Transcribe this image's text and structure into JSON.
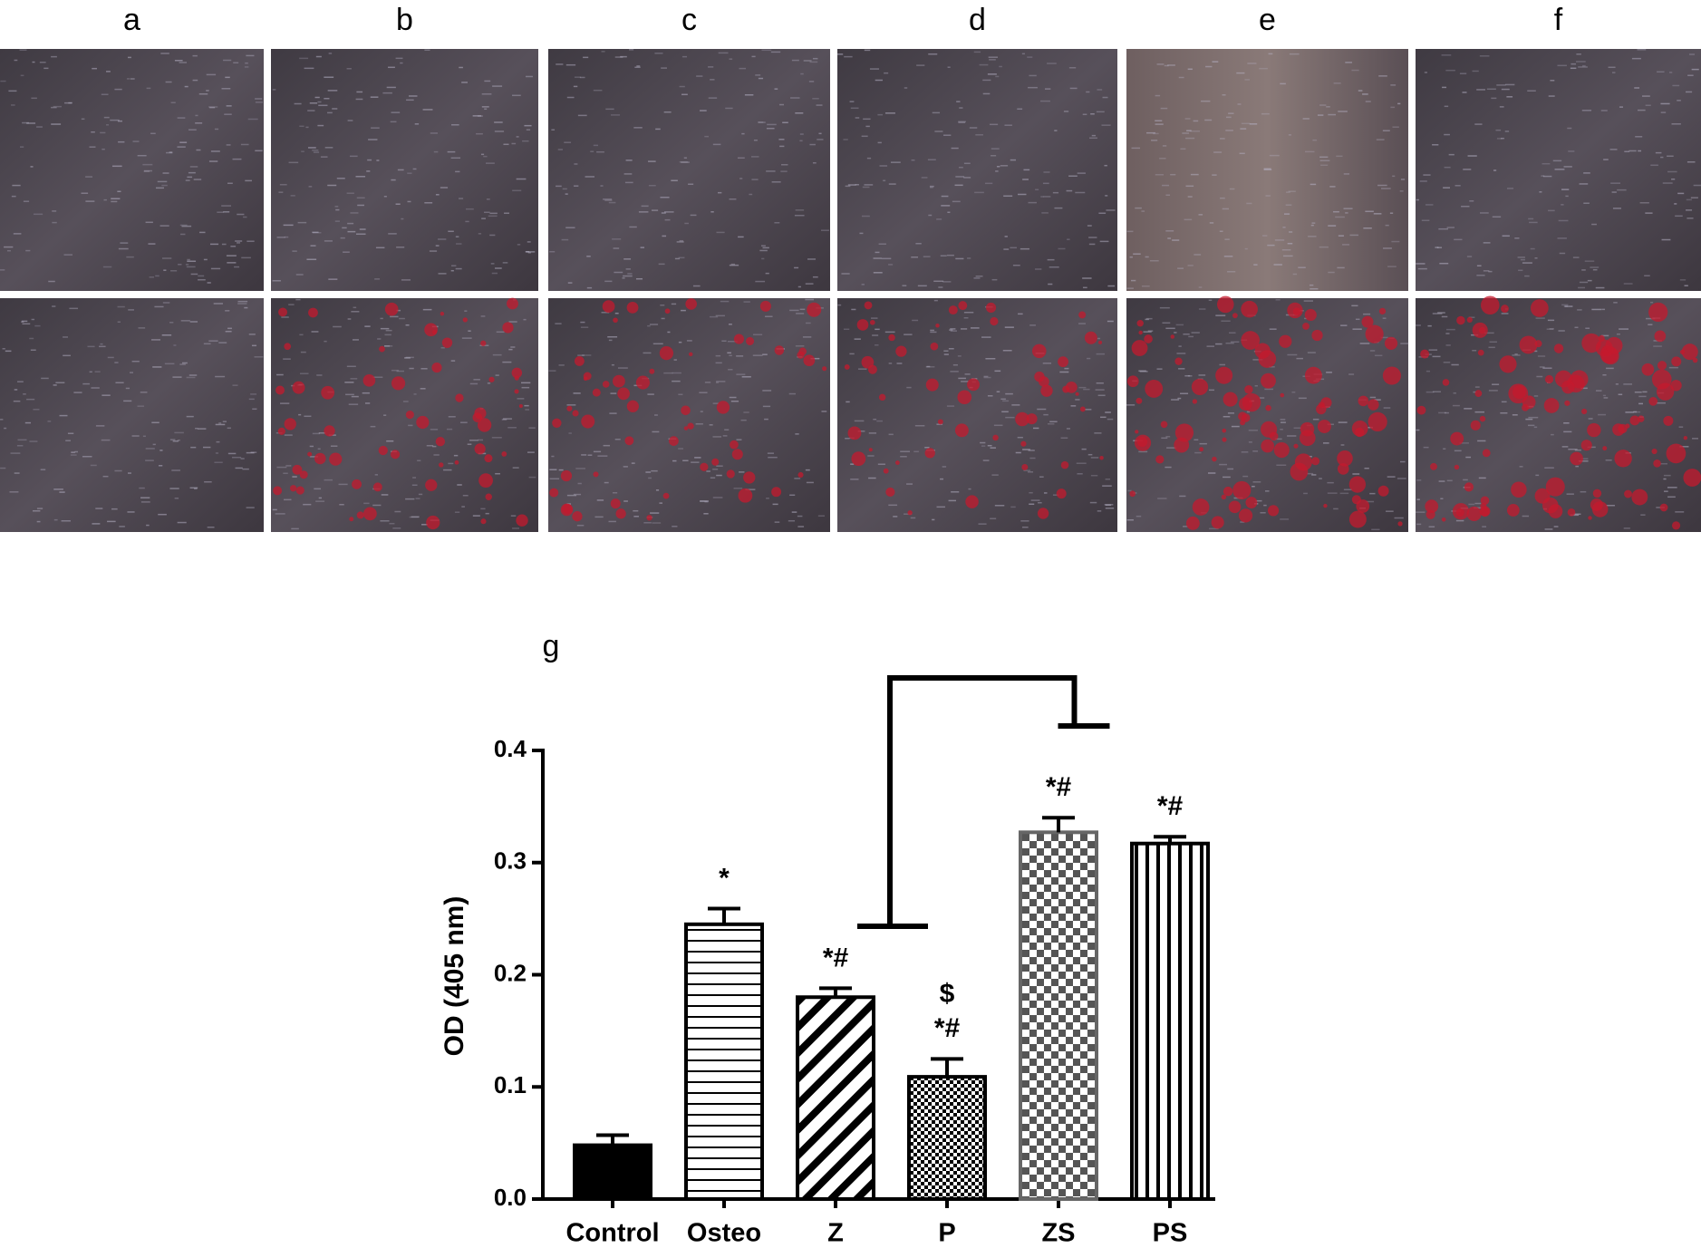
{
  "panels": [
    "a",
    "b",
    "c",
    "d",
    "e",
    "f"
  ],
  "chart_data": {
    "type": "bar",
    "panel_label": "g",
    "ylabel": "OD (405 nm)",
    "categories": [
      "Control",
      "Osteo",
      "Z",
      "P",
      "ZS",
      "PS"
    ],
    "values": [
      0.048,
      0.245,
      0.18,
      0.109,
      0.327,
      0.317
    ],
    "errors": [
      0.009,
      0.014,
      0.008,
      0.016,
      0.013,
      0.006
    ],
    "patterns": [
      "solid",
      "horizontal",
      "diagonal",
      "fine-checker",
      "checker",
      "vertical"
    ],
    "color": "#000000",
    "ylim": [
      0,
      0.4
    ],
    "yticks": [
      {
        "value": 0,
        "label": "0.0"
      },
      0.1,
      0.2,
      0.3,
      0.4
    ],
    "annotations": [
      {
        "text": "*",
        "category": "Osteo"
      },
      {
        "text": "*#",
        "category": "Z"
      },
      {
        "text": "*#",
        "category": "P"
      },
      {
        "text": "$",
        "category": "P"
      },
      {
        "text": "*#",
        "category": "ZS"
      },
      {
        "text": "*#",
        "category": "PS"
      }
    ]
  }
}
